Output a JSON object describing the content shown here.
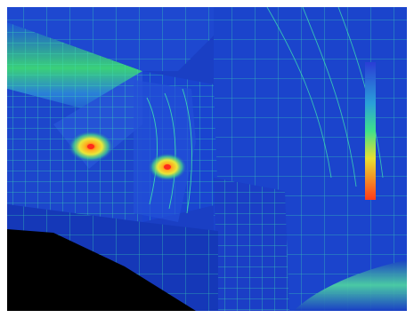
{
  "scene": {
    "kind": "finite-element stress contour render",
    "colors": {
      "frame": "#ffffff",
      "background_mesh_blue": "#1a3fc4",
      "deep_blue": "#0b1f9a",
      "mesh_line": "#3de0b0",
      "shadow": "#000000",
      "hotspot_core": "#ff2a1a",
      "hotspot_glow": "#ffe23a"
    },
    "hotspots": [
      {
        "label": "hotspot-left",
        "peak": "red"
      },
      {
        "label": "hotspot-right",
        "peak": "red"
      }
    ]
  },
  "legend": {
    "type": "vertical color bar",
    "stops": [
      "#2a3dd6",
      "#2aa0d8",
      "#3fe08a",
      "#e8e030",
      "#ff3a1a"
    ]
  }
}
